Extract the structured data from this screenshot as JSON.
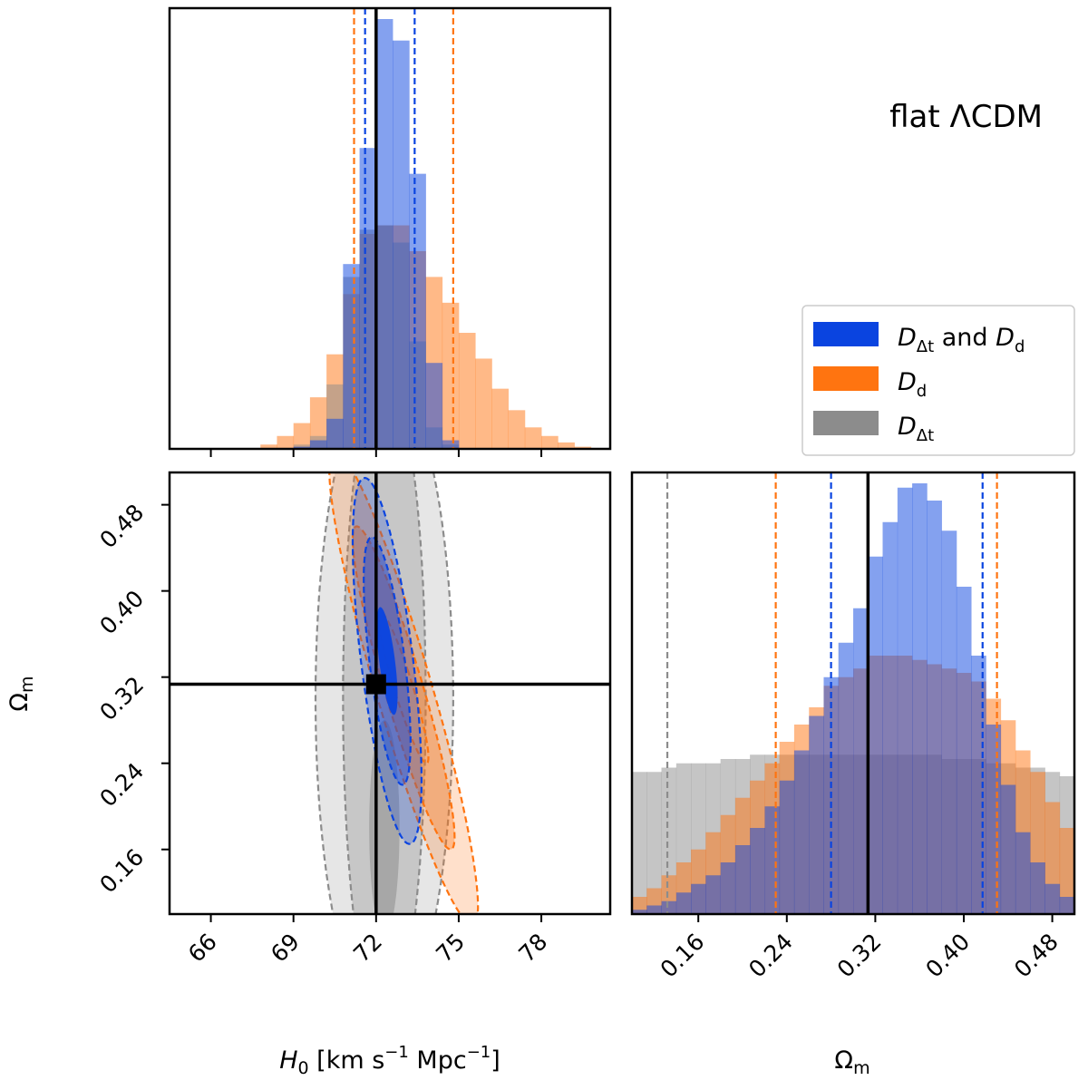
{
  "title_text": "flat ΛCDM",
  "colors": {
    "both": "#0a44e0",
    "dd": "#ff7410",
    "ddt": "#8c8c8c",
    "overlap": "#5a5ea0",
    "truth": "#000000"
  },
  "legend": {
    "entries": [
      {
        "key": "both",
        "color": "#0a44e0",
        "main": "D",
        "sub": "Δt",
        "mid": " and ",
        "main2": "D",
        "sub2": "d"
      },
      {
        "key": "dd",
        "color": "#ff7410",
        "main": "D",
        "sub": "d"
      },
      {
        "key": "ddt",
        "color": "#8c8c8c",
        "main": "D",
        "sub": "Δt"
      }
    ]
  },
  "chart_data": [
    {
      "panel": "H0 marginal",
      "type": "bar",
      "xlim": [
        64.5,
        80.5
      ],
      "xticks": [
        "66",
        "69",
        "72",
        "75",
        "78"
      ],
      "truth": 72.0,
      "bin_width": 0.6,
      "series": [
        {
          "name": "D_d",
          "color": "#ff7410",
          "x": [
            68.1,
            68.7,
            69.3,
            69.9,
            70.5,
            71.1,
            71.7,
            72.3,
            72.9,
            73.5,
            74.1,
            74.7,
            75.3,
            75.9,
            76.5,
            77.1,
            77.7,
            78.3,
            78.9,
            79.5
          ],
          "values": [
            0.01,
            0.03,
            0.06,
            0.12,
            0.22,
            0.36,
            0.5,
            0.52,
            0.52,
            0.46,
            0.4,
            0.34,
            0.27,
            0.21,
            0.14,
            0.09,
            0.05,
            0.03,
            0.015,
            0.005
          ],
          "quantiles": [
            71.2,
            74.8
          ]
        },
        {
          "name": "D_Δt",
          "color": "#8c8c8c",
          "x": [
            69.3,
            69.9,
            70.5,
            71.1,
            71.7,
            72.3,
            72.9,
            73.5,
            74.1,
            74.7
          ],
          "values": [
            0.01,
            0.03,
            0.15,
            0.4,
            0.51,
            0.52,
            0.48,
            0.25,
            0.05,
            0.01
          ],
          "quantiles": []
        },
        {
          "name": "D_Δt and D_d",
          "color": "#0a44e0",
          "x": [
            69.3,
            69.9,
            70.5,
            71.1,
            71.7,
            72.3,
            72.9,
            73.5,
            74.1,
            74.7
          ],
          "values": [
            0.005,
            0.02,
            0.07,
            0.43,
            0.7,
            1.0,
            0.95,
            0.64,
            0.2,
            0.02
          ],
          "quantiles": [
            71.6,
            73.4
          ]
        }
      ]
    },
    {
      "panel": "Omega_m marginal",
      "type": "bar",
      "xlim": [
        0.1,
        0.5
      ],
      "xticks": [
        "0.16",
        "0.24",
        "0.32",
        "0.40",
        "0.48"
      ],
      "truth": 0.3134,
      "bin_width": 0.0133,
      "series": [
        {
          "name": "D_Δt",
          "color": "#8c8c8c",
          "x": [
            0.1067,
            0.12,
            0.1333,
            0.1467,
            0.16,
            0.1733,
            0.1867,
            0.2,
            0.2133,
            0.2267,
            0.24,
            0.2533,
            0.2667,
            0.28,
            0.2933,
            0.3067,
            0.32,
            0.3333,
            0.3467,
            0.36,
            0.3733,
            0.3867,
            0.4,
            0.4133,
            0.4267,
            0.44,
            0.4533,
            0.4667,
            0.48,
            0.4933
          ],
          "values": [
            0.33,
            0.33,
            0.34,
            0.35,
            0.35,
            0.35,
            0.36,
            0.36,
            0.37,
            0.37,
            0.37,
            0.37,
            0.37,
            0.37,
            0.37,
            0.37,
            0.37,
            0.37,
            0.37,
            0.37,
            0.37,
            0.36,
            0.36,
            0.36,
            0.35,
            0.35,
            0.34,
            0.34,
            0.33,
            0.32
          ],
          "quantiles": [
            0.132
          ]
        },
        {
          "name": "D_d",
          "color": "#ff7410",
          "x": [
            0.1067,
            0.12,
            0.1333,
            0.1467,
            0.16,
            0.1733,
            0.1867,
            0.2,
            0.2133,
            0.2267,
            0.24,
            0.2533,
            0.2667,
            0.28,
            0.2933,
            0.3067,
            0.32,
            0.3333,
            0.3467,
            0.36,
            0.3733,
            0.3867,
            0.4,
            0.4133,
            0.4267,
            0.44,
            0.4533,
            0.4667,
            0.48,
            0.4933
          ],
          "values": [
            0.04,
            0.06,
            0.09,
            0.12,
            0.15,
            0.19,
            0.23,
            0.27,
            0.31,
            0.35,
            0.4,
            0.44,
            0.48,
            0.53,
            0.55,
            0.57,
            0.6,
            0.6,
            0.6,
            0.59,
            0.58,
            0.57,
            0.56,
            0.54,
            0.5,
            0.45,
            0.38,
            0.33,
            0.26,
            0.2
          ],
          "quantiles": [
            0.23,
            0.43
          ]
        },
        {
          "name": "D_Δt and D_d",
          "color": "#0a44e0",
          "x": [
            0.1067,
            0.12,
            0.1333,
            0.1467,
            0.16,
            0.1733,
            0.1867,
            0.2,
            0.2133,
            0.2267,
            0.24,
            0.2533,
            0.2667,
            0.28,
            0.2933,
            0.3067,
            0.32,
            0.3333,
            0.3467,
            0.36,
            0.3733,
            0.3867,
            0.4,
            0.4133,
            0.4267,
            0.44,
            0.4533,
            0.4667,
            0.48,
            0.4933
          ],
          "values": [
            0.01,
            0.02,
            0.03,
            0.05,
            0.07,
            0.09,
            0.12,
            0.16,
            0.2,
            0.25,
            0.31,
            0.38,
            0.46,
            0.55,
            0.63,
            0.71,
            0.83,
            0.91,
            0.99,
            1.0,
            0.96,
            0.89,
            0.76,
            0.6,
            0.44,
            0.3,
            0.19,
            0.12,
            0.07,
            0.04
          ],
          "quantiles": [
            0.28,
            0.417
          ]
        }
      ]
    },
    {
      "panel": "joint H0 - Omega_m",
      "type": "contour",
      "xlabel_main": "H",
      "xlabel_sub": "0",
      "xlabel_rest": " [km s",
      "xlabel_sup1": "−1",
      "xlabel_mid": " Mpc",
      "xlabel_sup2": "−1",
      "xlabel_end": "]",
      "ylabel_main": "Ω",
      "ylabel_sub": "m",
      "xlim": [
        64.5,
        80.5
      ],
      "ylim": [
        0.1,
        0.51
      ],
      "xticks": [
        "66",
        "69",
        "72",
        "75",
        "78"
      ],
      "yticks": [
        "0.16",
        "0.24",
        "0.32",
        "0.40",
        "0.48"
      ],
      "truth": {
        "H0": 72.0,
        "Om": 0.3134
      },
      "series": [
        {
          "name": "D_Δt",
          "color": "#8c8c8c",
          "levels": [
            {
              "center": [
                72.3,
                0.3
              ],
              "sx": 2.5,
              "sy": 0.3,
              "rho": 0.0,
              "alpha": 0.22,
              "dashed": true
            },
            {
              "center": [
                72.3,
                0.3
              ],
              "sx": 1.5,
              "sy": 0.3,
              "rho": 0.0,
              "alpha": 0.35,
              "dashed": true
            },
            {
              "center": [
                72.3,
                0.18
              ],
              "sx": 0.55,
              "sy": 0.1,
              "rho": 0.0,
              "alpha": 0.55,
              "dashed": false
            }
          ]
        },
        {
          "name": "D_d",
          "color": "#ff7410",
          "levels": [
            {
              "center": [
                73.0,
                0.31
              ],
              "sx": 2.7,
              "sy": 0.22,
              "rho": -0.92,
              "alpha": 0.22,
              "dashed": true
            },
            {
              "center": [
                73.0,
                0.31
              ],
              "sx": 1.85,
              "sy": 0.15,
              "rho": -0.92,
              "alpha": 0.35,
              "dashed": true
            },
            {
              "center": [
                73.0,
                0.31
              ],
              "sx": 0.9,
              "sy": 0.07,
              "rho": -0.92,
              "alpha": 0.0,
              "dashed": true
            }
          ]
        },
        {
          "name": "D_Δt and D_d",
          "color": "#0a44e0",
          "levels": [
            {
              "center": [
                72.4,
                0.335
              ],
              "sx": 1.25,
              "sy": 0.17,
              "rho": -0.65,
              "alpha": 0.25,
              "dashed": true
            },
            {
              "center": [
                72.4,
                0.335
              ],
              "sx": 0.85,
              "sy": 0.115,
              "rho": -0.65,
              "alpha": 0.4,
              "dashed": true
            },
            {
              "center": [
                72.4,
                0.335
              ],
              "sx": 0.38,
              "sy": 0.05,
              "rho": -0.65,
              "alpha": 0.95,
              "dashed": false
            }
          ]
        }
      ]
    }
  ]
}
